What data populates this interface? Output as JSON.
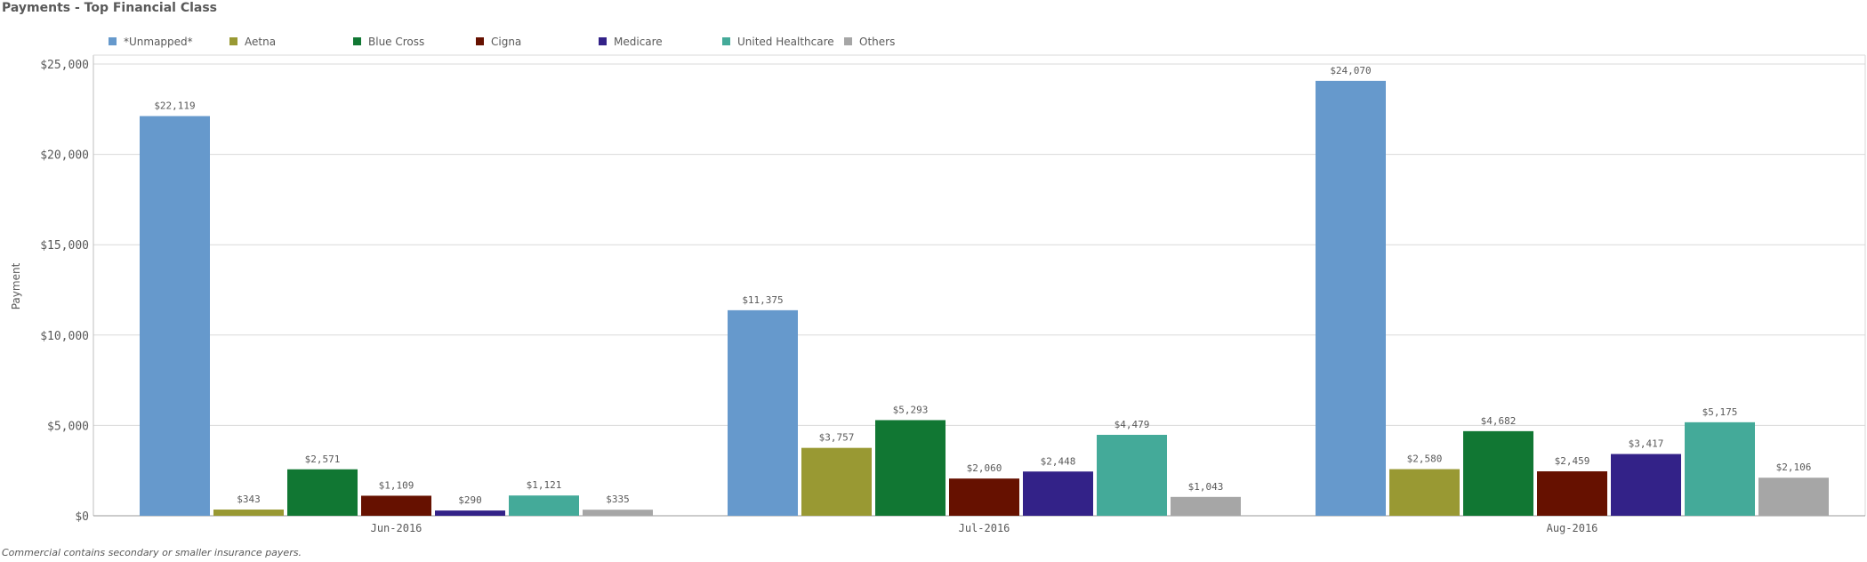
{
  "title": "Payments - Top Financial Class",
  "footnote": "Commercial contains secondary or smaller insurance payers.",
  "chart_data": {
    "type": "bar",
    "ylabel": "Payment",
    "xlabel": "",
    "ylim": [
      0,
      25000
    ],
    "yticks": [
      0,
      5000,
      10000,
      15000,
      20000,
      25000
    ],
    "ytick_labels": [
      "$0",
      "$5,000",
      "$10,000",
      "$15,000",
      "$20,000",
      "$25,000"
    ],
    "grid": true,
    "legend_position": "top-left",
    "categories": [
      "Jun-2016",
      "Jul-2016",
      "Aug-2016"
    ],
    "series": [
      {
        "name": "*Unmapped*",
        "color": "#6699cc",
        "values": [
          22119,
          11375,
          24070
        ],
        "labels": [
          "$22,119",
          "$11,375",
          "$24,070"
        ]
      },
      {
        "name": "Aetna",
        "color": "#999933",
        "values": [
          343,
          3757,
          2580
        ],
        "labels": [
          "$343",
          "$3,757",
          "$2,580"
        ]
      },
      {
        "name": "Blue Cross",
        "color": "#117733",
        "values": [
          2571,
          5293,
          4682
        ],
        "labels": [
          "$2,571",
          "$5,293",
          "$4,682"
        ]
      },
      {
        "name": "Cigna",
        "color": "#661100",
        "values": [
          1109,
          2060,
          2459
        ],
        "labels": [
          "$1,109",
          "$2,060",
          "$2,459"
        ]
      },
      {
        "name": "Medicare",
        "color": "#332288",
        "values": [
          290,
          2448,
          3417
        ],
        "labels": [
          "$290",
          "$2,448",
          "$3,417"
        ]
      },
      {
        "name": "United Healthcare",
        "color": "#44aa99",
        "values": [
          1121,
          4479,
          5175
        ],
        "labels": [
          "$1,121",
          "$4,479",
          "$5,175"
        ]
      },
      {
        "name": "Others",
        "color": "#a6a6a6",
        "values": [
          335,
          1043,
          2106
        ],
        "labels": [
          "$335",
          "$1,043",
          "$2,106"
        ]
      }
    ]
  }
}
